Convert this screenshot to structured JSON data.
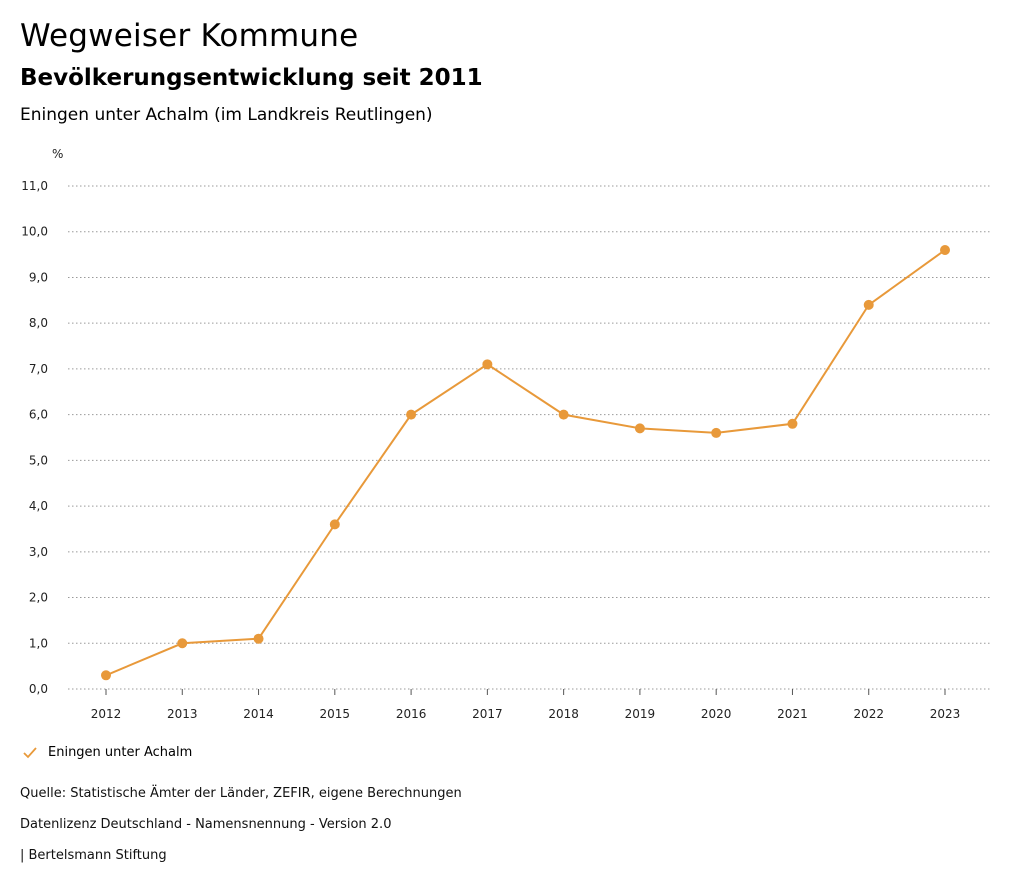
{
  "header": {
    "title": "Wegweiser Kommune",
    "subtitle": "Bevölkerungsentwicklung seit 2011",
    "region": "Eningen unter Achalm (im Landkreis Reutlingen)"
  },
  "legend": {
    "label": "Eningen unter Achalm",
    "color": "#e8993a"
  },
  "footer": {
    "source": "Quelle: Statistische Ämter der Länder, ZEFIR, eigene Berechnungen",
    "license": "Datenlizenz Deutschland - Namensnennung - Version 2.0",
    "publisher": "| Bertelsmann Stiftung"
  },
  "chart_data": {
    "type": "line",
    "title": "Bevölkerungsentwicklung seit 2011",
    "ylabel": "%",
    "xlabel": "",
    "ylim": [
      0,
      11
    ],
    "yticks": [
      "0,0",
      "1,0",
      "2,0",
      "3,0",
      "4,0",
      "5,0",
      "6,0",
      "7,0",
      "8,0",
      "9,0",
      "10,0",
      "11,0"
    ],
    "grid": true,
    "categories": [
      "2012",
      "2013",
      "2014",
      "2015",
      "2016",
      "2017",
      "2018",
      "2019",
      "2020",
      "2021",
      "2022",
      "2023"
    ],
    "series": [
      {
        "name": "Eningen unter Achalm",
        "color": "#e8993a",
        "values": [
          0.3,
          1.0,
          1.1,
          3.6,
          6.0,
          7.1,
          6.0,
          5.7,
          5.6,
          5.8,
          8.4,
          9.6
        ]
      }
    ]
  }
}
